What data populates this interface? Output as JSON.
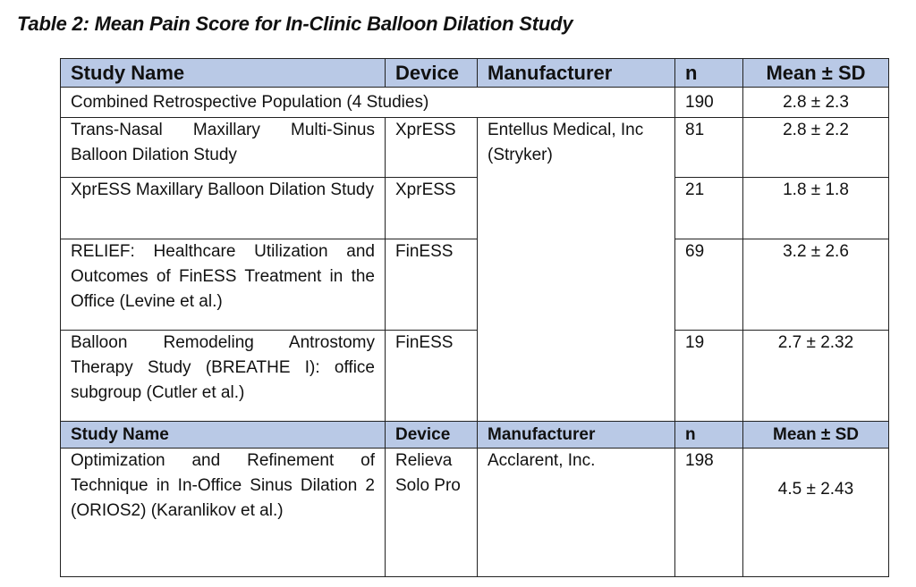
{
  "caption": "Table 2: Mean Pain Score for In-Clinic Balloon Dilation Study",
  "header": {
    "study_name": "Study Name",
    "device": "Device",
    "manufacturer": "Manufacturer",
    "n": "n",
    "mean_sd": "Mean ± SD"
  },
  "combined": {
    "label": "Combined Retrospective Population (4 Studies)",
    "n": "190",
    "mean_sd": "2.8 ± 2.3"
  },
  "entellus_manufacturer": "Entellus Medical, Inc (Stryker)",
  "rows": [
    {
      "study": "Trans-Nasal Maxillary Multi-Sinus Balloon Dilation Study",
      "device": "XprESS",
      "n": "81",
      "mean_sd": "2.8 ± 2.2"
    },
    {
      "study": "XprESS Maxillary Balloon Dilation Study",
      "device": "XprESS",
      "n": "21",
      "mean_sd": "1.8 ± 1.8"
    },
    {
      "study": "RELIEF: Healthcare Utilization and Outcomes of FinESS Treatment in the Office (Levine et al.)",
      "device": "FinESS",
      "n": "69",
      "mean_sd": "3.2 ± 2.6"
    },
    {
      "study": "Balloon Remodeling Antrostomy Therapy Study (BREATHE I): office subgroup (Cutler et al.)",
      "device": "FinESS",
      "n": "19",
      "mean_sd": "2.7 ± 2.32"
    }
  ],
  "acclarent_row": {
    "study": "Optimization and Refinement of Technique in In-Office Sinus Dilation 2 (ORIOS2) (Karanlikov et al.)",
    "device": "Relieva Solo Pro",
    "manufacturer": "Acclarent, Inc.",
    "n": "198",
    "mean_sd": "4.5 ± 2.43"
  }
}
